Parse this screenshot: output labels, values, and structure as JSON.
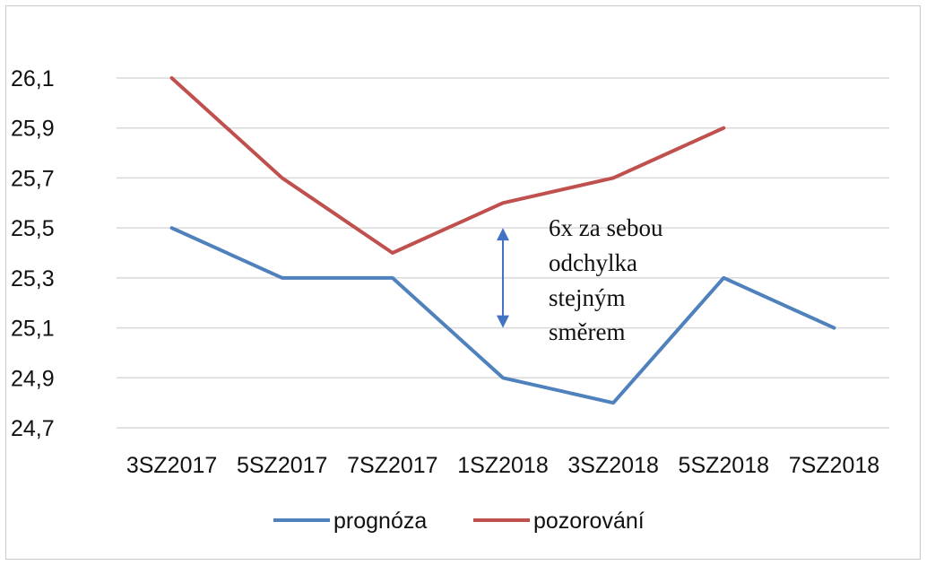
{
  "chart_data": {
    "type": "line",
    "categories": [
      "3SZ2017",
      "5SZ2017",
      "7SZ2017",
      "1SZ2018",
      "3SZ2018",
      "5SZ2018",
      "7SZ2018"
    ],
    "series": [
      {
        "name": "prognóza",
        "color": "#4f81bd",
        "values": [
          25.5,
          25.3,
          25.3,
          24.9,
          24.8,
          25.3,
          25.1
        ]
      },
      {
        "name": "pozorování",
        "color": "#c0504d",
        "values": [
          26.1,
          25.7,
          25.4,
          25.6,
          25.7,
          25.9,
          null
        ]
      }
    ],
    "yticks": [
      "24,7",
      "24,9",
      "25,1",
      "25,3",
      "25,5",
      "25,7",
      "25,9",
      "26,1"
    ],
    "ylim": [
      24.7,
      26.1
    ],
    "grid": true,
    "legend_position": "bottom",
    "annotation": {
      "lines": [
        "6x za sebou",
        "odchylka",
        "stejným",
        "směrem"
      ],
      "arrow_color": "#4472c4",
      "arrow_from_value": 25.5,
      "arrow_to_value": 25.1,
      "arrow_category_position": 3.5
    }
  }
}
